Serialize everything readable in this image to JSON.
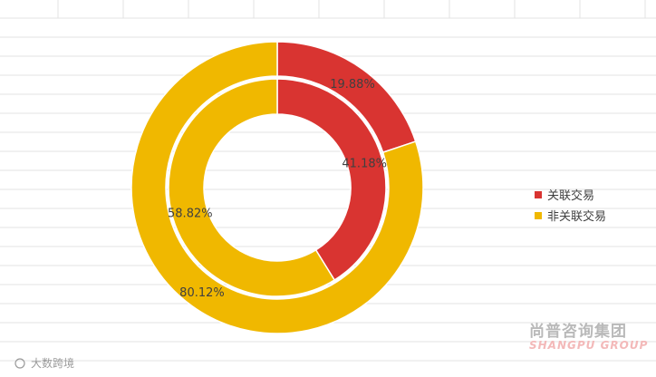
{
  "chart_data": {
    "type": "pie",
    "subtype": "doughnut",
    "categories": [
      "关联交易",
      "非关联交易"
    ],
    "colors": [
      "#d93431",
      "#f0b800"
    ],
    "series": [
      {
        "ring": "outer",
        "values": [
          19.88,
          80.12
        ],
        "labels": [
          "19.88%",
          "80.12%"
        ]
      },
      {
        "ring": "inner",
        "values": [
          41.18,
          58.82
        ],
        "labels": [
          "41.18%",
          "58.82%"
        ]
      }
    ],
    "legend_position": "right",
    "start_angle": "12 o'clock",
    "direction": "clockwise"
  },
  "legend": {
    "items": [
      {
        "label": "关联交易",
        "color": "#d93431"
      },
      {
        "label": "非关联交易",
        "color": "#f0b800"
      }
    ]
  },
  "watermarks": {
    "company_cn": "尚普咨询集团",
    "company_en": "SHANGPU GROUP",
    "bottom_left": "大数跨境"
  }
}
